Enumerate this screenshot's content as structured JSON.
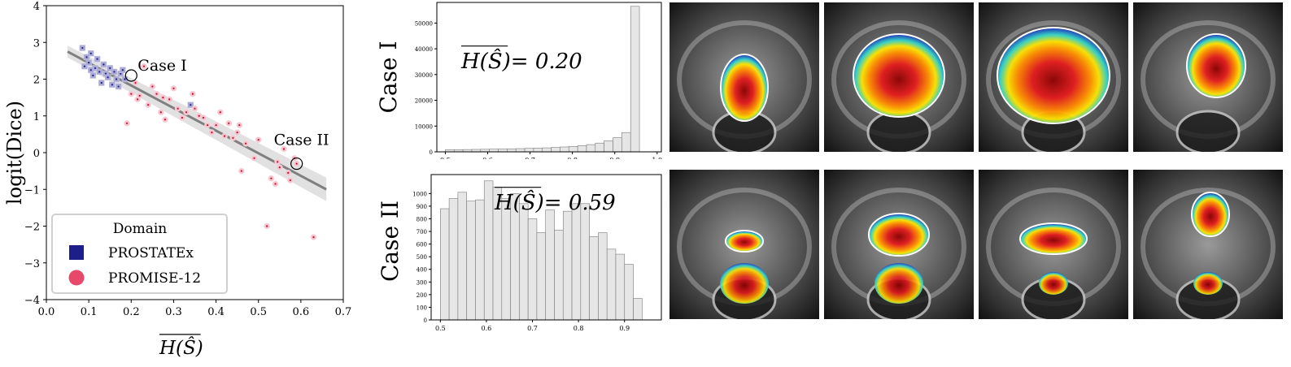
{
  "chart_data": [
    {
      "type": "scatter",
      "xlabel": "H(Ŝ)",
      "ylabel": "logit(Dice)",
      "xlim": [
        0.0,
        0.7
      ],
      "ylim": [
        -4,
        4
      ],
      "xticks": [
        "0.0",
        "0.1",
        "0.2",
        "0.3",
        "0.4",
        "0.5",
        "0.6",
        "0.7"
      ],
      "yticks": [
        "4",
        "3",
        "2",
        "1",
        "0",
        "−1",
        "−2",
        "−3",
        "−4"
      ],
      "grid": false,
      "legend": {
        "title": "Domain",
        "position": "bottom-left"
      },
      "series": [
        {
          "name": "PROSTATEx",
          "color": "#1c1f8a",
          "marker": "square",
          "points": [
            [
              0.085,
              2.85
            ],
            [
              0.09,
              2.35
            ],
            [
              0.1,
              2.45
            ],
            [
              0.105,
              2.7
            ],
            [
              0.11,
              2.1
            ],
            [
              0.115,
              2.3
            ],
            [
              0.12,
              2.55
            ],
            [
              0.125,
              2.2
            ],
            [
              0.13,
              1.9
            ],
            [
              0.135,
              2.4
            ],
            [
              0.14,
              2.15
            ],
            [
              0.145,
              2.05
            ],
            [
              0.15,
              2.3
            ],
            [
              0.155,
              1.85
            ],
            [
              0.16,
              2.2
            ],
            [
              0.165,
              2.0
            ],
            [
              0.17,
              1.8
            ],
            [
              0.175,
              2.15
            ],
            [
              0.18,
              2.25
            ],
            [
              0.185,
              2.0
            ],
            [
              0.095,
              2.6
            ],
            [
              0.105,
              2.25
            ],
            [
              0.34,
              1.3
            ]
          ]
        },
        {
          "name": "PROMISE-12",
          "color": "#e8486a",
          "marker": "circle",
          "points": [
            [
              0.19,
              0.8
            ],
            [
              0.2,
              1.6
            ],
            [
              0.21,
              1.9
            ],
            [
              0.215,
              1.45
            ],
            [
              0.22,
              1.55
            ],
            [
              0.23,
              2.35
            ],
            [
              0.24,
              1.3
            ],
            [
              0.25,
              1.8
            ],
            [
              0.26,
              1.6
            ],
            [
              0.27,
              1.1
            ],
            [
              0.275,
              1.5
            ],
            [
              0.28,
              0.9
            ],
            [
              0.29,
              1.45
            ],
            [
              0.3,
              1.75
            ],
            [
              0.31,
              1.2
            ],
            [
              0.32,
              0.95
            ],
            [
              0.33,
              1.1
            ],
            [
              0.345,
              1.6
            ],
            [
              0.35,
              1.2
            ],
            [
              0.36,
              1.0
            ],
            [
              0.37,
              0.95
            ],
            [
              0.38,
              0.75
            ],
            [
              0.39,
              0.55
            ],
            [
              0.4,
              0.75
            ],
            [
              0.41,
              1.1
            ],
            [
              0.42,
              0.45
            ],
            [
              0.43,
              0.8
            ],
            [
              0.44,
              0.4
            ],
            [
              0.45,
              0.55
            ],
            [
              0.455,
              0.75
            ],
            [
              0.46,
              -0.5
            ],
            [
              0.47,
              0.25
            ],
            [
              0.49,
              -0.15
            ],
            [
              0.5,
              0.35
            ],
            [
              0.52,
              -2.0
            ],
            [
              0.53,
              -0.7
            ],
            [
              0.54,
              -0.85
            ],
            [
              0.545,
              -0.25
            ],
            [
              0.55,
              -0.4
            ],
            [
              0.56,
              0.1
            ],
            [
              0.57,
              -0.55
            ],
            [
              0.575,
              -0.75
            ],
            [
              0.585,
              -0.15
            ],
            [
              0.59,
              -0.3
            ],
            [
              0.63,
              -2.3
            ]
          ]
        }
      ],
      "regression": {
        "x": [
          0.05,
          0.66
        ],
        "y": [
          2.75,
          -1.0
        ],
        "band": 0.2
      },
      "annotations": [
        {
          "text": "Case I",
          "x": 0.2,
          "y": 2.1
        },
        {
          "text": "Case II",
          "x": 0.59,
          "y": -0.3
        }
      ]
    },
    {
      "type": "bar",
      "ylabel": "Case I",
      "annotation": "H(Ŝ)= 0.20",
      "xlim": [
        0.48,
        1.01
      ],
      "ylim": [
        0,
        58000
      ],
      "xticks": [
        "0.5",
        "0.6",
        "0.7",
        "0.8",
        "0.9",
        "1.0"
      ],
      "yticks": [
        "0",
        "10000",
        "20000",
        "30000",
        "40000",
        "50000"
      ],
      "bin_start": 0.5,
      "bin_width": 0.02083,
      "values": [
        800,
        850,
        900,
        950,
        1000,
        1050,
        1100,
        1150,
        1250,
        1350,
        1450,
        1550,
        1700,
        1900,
        2100,
        2400,
        2800,
        3400,
        4300,
        5500,
        7500,
        56500
      ]
    },
    {
      "type": "bar",
      "ylabel": "Case II",
      "annotation": "H(Ŝ)= 0.59",
      "xlim": [
        0.48,
        0.98
      ],
      "ylim": [
        0,
        1150
      ],
      "xticks": [
        "0.5",
        "0.6",
        "0.7",
        "0.8",
        "0.9"
      ],
      "yticks": [
        "0",
        "100",
        "200",
        "300",
        "400",
        "500",
        "600",
        "700",
        "800",
        "900",
        "1000"
      ],
      "bin_start": 0.5,
      "bin_width": 0.01905,
      "values": [
        880,
        960,
        1010,
        940,
        950,
        1100,
        1050,
        960,
        1000,
        920,
        800,
        690,
        870,
        710,
        860,
        920,
        920,
        660,
        690,
        560,
        520,
        440,
        170
      ]
    }
  ],
  "mri": {
    "rows": [
      {
        "label": "Case I"
      },
      {
        "label": "Case II"
      }
    ]
  }
}
